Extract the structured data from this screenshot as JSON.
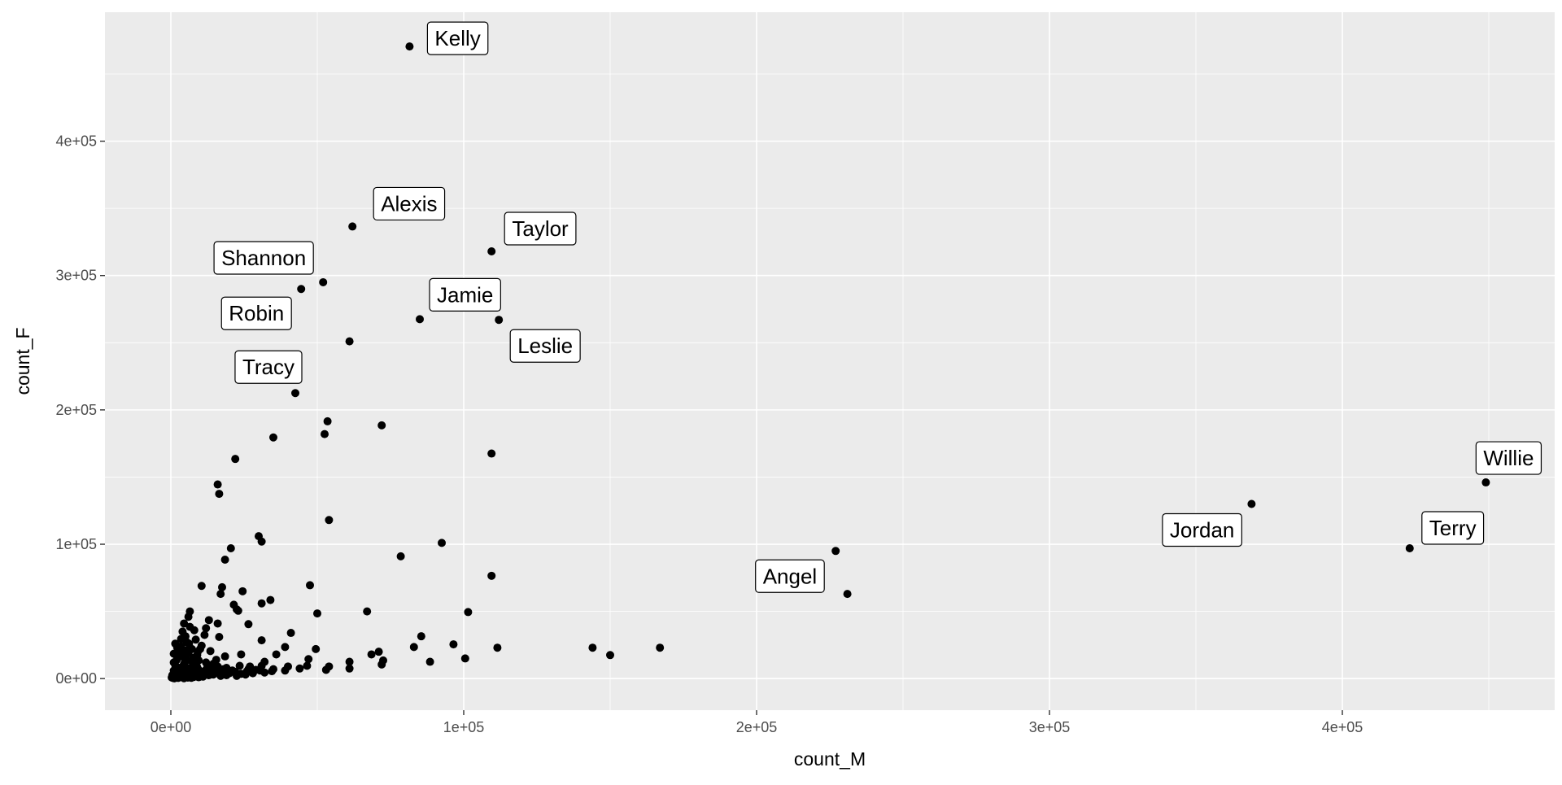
{
  "chart_data": {
    "type": "scatter",
    "xlabel": "count_M",
    "ylabel": "count_F",
    "xlim": [
      -22500,
      472500
    ],
    "ylim": [
      -23500,
      496000
    ],
    "x_ticks": [
      0,
      100000,
      200000,
      300000,
      400000
    ],
    "x_tick_labels": [
      "0e+00",
      "1e+05",
      "2e+05",
      "3e+05",
      "4e+05"
    ],
    "y_ticks": [
      0,
      100000,
      200000,
      300000,
      400000
    ],
    "y_tick_labels": [
      "0e+00",
      "1e+05",
      "2e+05",
      "3e+05",
      "4e+05"
    ],
    "grid": true,
    "colors": {
      "panel": "#ebebeb",
      "grid": "#ffffff",
      "point": "#000000",
      "label_border": "#000000",
      "label_fill": "#ffffff",
      "tick_text": "#4d4d4d"
    },
    "labeled_points": [
      {
        "name": "Kelly",
        "x": 81500,
        "y": 470500
      },
      {
        "name": "Alexis",
        "x": 62000,
        "y": 336500
      },
      {
        "name": "Taylor",
        "x": 109500,
        "y": 318000
      },
      {
        "name": "Shannon",
        "x": 52000,
        "y": 295000
      },
      {
        "name": "Robin",
        "x": 44500,
        "y": 290000
      },
      {
        "name": "Jamie",
        "x": 85000,
        "y": 267500
      },
      {
        "name": "Leslie",
        "x": 112000,
        "y": 267000
      },
      {
        "name": "Tracy",
        "x": 42500,
        "y": 212500
      },
      {
        "name": "Willie",
        "x": 449000,
        "y": 146000
      },
      {
        "name": "Jordan",
        "x": 369000,
        "y": 130000
      },
      {
        "name": "Terry",
        "x": 423000,
        "y": 97000
      },
      {
        "name": "Angel",
        "x": 227000,
        "y": 95000
      }
    ],
    "points": [
      [
        61000,
        251000
      ],
      [
        53500,
        191500
      ],
      [
        72000,
        188500
      ],
      [
        52500,
        182000
      ],
      [
        35000,
        179500
      ],
      [
        109500,
        167500
      ],
      [
        22000,
        163500
      ],
      [
        16000,
        144500
      ],
      [
        16500,
        137500
      ],
      [
        54000,
        118000
      ],
      [
        30000,
        106000
      ],
      [
        31000,
        102000
      ],
      [
        92500,
        101000
      ],
      [
        20500,
        97000
      ],
      [
        18500,
        88500
      ],
      [
        78500,
        91000
      ],
      [
        109500,
        76500
      ],
      [
        10500,
        69000
      ],
      [
        47500,
        69500
      ],
      [
        17500,
        68000
      ],
      [
        24500,
        65000
      ],
      [
        17000,
        63000
      ],
      [
        231000,
        63000
      ],
      [
        34000,
        58500
      ],
      [
        21500,
        55000
      ],
      [
        31000,
        56000
      ],
      [
        22500,
        51500
      ],
      [
        23000,
        50500
      ],
      [
        6500,
        50000
      ],
      [
        67000,
        50000
      ],
      [
        101500,
        49500
      ],
      [
        50000,
        48500
      ],
      [
        6000,
        46000
      ],
      [
        13000,
        43500
      ],
      [
        4500,
        41000
      ],
      [
        16000,
        41000
      ],
      [
        26500,
        40500
      ],
      [
        12000,
        37500
      ],
      [
        8000,
        36000
      ],
      [
        4000,
        35000
      ],
      [
        41000,
        34000
      ],
      [
        11500,
        32500
      ],
      [
        16500,
        31000
      ],
      [
        85500,
        31500
      ],
      [
        3500,
        29500
      ],
      [
        8500,
        29000
      ],
      [
        31000,
        28500
      ],
      [
        5500,
        27000
      ],
      [
        96500,
        25500
      ],
      [
        144000,
        23000
      ],
      [
        167000,
        23000
      ],
      [
        83000,
        23500
      ],
      [
        111500,
        23000
      ],
      [
        39000,
        23500
      ],
      [
        49500,
        22000
      ],
      [
        3000,
        22000
      ],
      [
        10000,
        22000
      ],
      [
        13500,
        20500
      ],
      [
        2500,
        20000
      ],
      [
        6000,
        19000
      ],
      [
        71000,
        20000
      ],
      [
        68500,
        18000
      ],
      [
        150000,
        17500
      ],
      [
        24000,
        18000
      ],
      [
        36000,
        18000
      ],
      [
        18500,
        16500
      ],
      [
        100500,
        15000
      ],
      [
        7500,
        15500
      ],
      [
        47000,
        14500
      ],
      [
        72500,
        13500
      ],
      [
        88500,
        12500
      ],
      [
        61000,
        12500
      ],
      [
        32000,
        12500
      ],
      [
        2000,
        14000
      ],
      [
        9500,
        13500
      ],
      [
        72000,
        10500
      ],
      [
        46500,
        9500
      ],
      [
        27000,
        9000
      ],
      [
        14500,
        11000
      ],
      [
        4500,
        11000
      ],
      [
        1500,
        10000
      ],
      [
        40000,
        9000
      ],
      [
        54000,
        9000
      ],
      [
        61000,
        7500
      ],
      [
        35000,
        7000
      ],
      [
        30500,
        6000
      ],
      [
        53000,
        6500
      ],
      [
        32000,
        4500
      ],
      [
        22000,
        5000
      ],
      [
        26000,
        5500
      ],
      [
        3000,
        8000
      ],
      [
        6000,
        7500
      ],
      [
        9000,
        8500
      ],
      [
        12000,
        6500
      ],
      [
        18000,
        7000
      ],
      [
        1000,
        6000
      ],
      [
        4000,
        5000
      ],
      [
        7500,
        4500
      ],
      [
        11000,
        4000
      ],
      [
        15000,
        5000
      ],
      [
        20000,
        4000
      ],
      [
        24000,
        3500
      ],
      [
        28000,
        4000
      ],
      [
        2000,
        3000
      ],
      [
        5000,
        2500
      ],
      [
        8500,
        2000
      ],
      [
        13000,
        2500
      ],
      [
        17000,
        2000
      ],
      [
        500,
        2500
      ],
      [
        1500,
        1500
      ],
      [
        3500,
        1000
      ],
      [
        6000,
        1000
      ],
      [
        9500,
        1000
      ],
      [
        300,
        800
      ],
      [
        800,
        400
      ],
      [
        1200,
        200
      ],
      [
        2500,
        500
      ],
      [
        4500,
        300
      ],
      [
        7000,
        600
      ],
      [
        11000,
        1500
      ],
      [
        14500,
        3000
      ],
      [
        19000,
        2500
      ],
      [
        22500,
        2000
      ],
      [
        25500,
        3000
      ],
      [
        29000,
        6500
      ],
      [
        1000,
        12000
      ],
      [
        2500,
        16500
      ],
      [
        3500,
        24000
      ],
      [
        5000,
        31500
      ],
      [
        6500,
        38500
      ],
      [
        7000,
        13000
      ],
      [
        9000,
        17500
      ],
      [
        10500,
        24500
      ],
      [
        12500,
        9500
      ],
      [
        15500,
        14000
      ],
      [
        2000,
        7000
      ],
      [
        3000,
        4500
      ],
      [
        4000,
        9000
      ],
      [
        5500,
        13500
      ],
      [
        6500,
        5500
      ],
      [
        8000,
        10000
      ],
      [
        9500,
        6500
      ],
      [
        10500,
        3500
      ],
      [
        12000,
        12000
      ],
      [
        13500,
        7500
      ],
      [
        16000,
        9000
      ],
      [
        17500,
        5000
      ],
      [
        19000,
        8000
      ],
      [
        21000,
        6000
      ],
      [
        23500,
        9500
      ],
      [
        26500,
        7000
      ],
      [
        31000,
        9500
      ],
      [
        34500,
        5500
      ],
      [
        39000,
        6000
      ],
      [
        44000,
        7500
      ],
      [
        1500,
        4000
      ],
      [
        2500,
        2000
      ],
      [
        3500,
        3000
      ],
      [
        4500,
        6000
      ],
      [
        5500,
        3500
      ],
      [
        6500,
        2000
      ],
      [
        7500,
        8000
      ],
      [
        8500,
        4500
      ],
      [
        10000,
        2500
      ],
      [
        11500,
        5500
      ],
      [
        600,
        1800
      ],
      [
        1800,
        900
      ],
      [
        2800,
        1400
      ],
      [
        3800,
        2200
      ],
      [
        4800,
        1600
      ],
      [
        5800,
        700
      ],
      [
        6800,
        3200
      ],
      [
        7800,
        1200
      ],
      [
        8800,
        2700
      ],
      [
        9800,
        3800
      ],
      [
        1000,
        18500
      ],
      [
        1500,
        26000
      ],
      [
        2200,
        23000
      ],
      [
        3200,
        19000
      ],
      [
        4200,
        16000
      ],
      [
        5200,
        21000
      ],
      [
        6200,
        26000
      ],
      [
        7200,
        22000
      ],
      [
        8200,
        15000
      ],
      [
        9200,
        20000
      ]
    ]
  }
}
